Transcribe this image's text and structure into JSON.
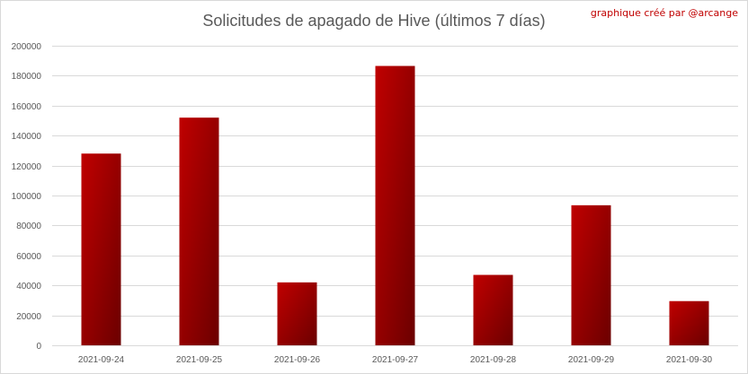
{
  "chart_data": {
    "type": "bar",
    "title": "Solicitudes de apagado de Hive (últimos 7 días)",
    "annotation": "graphique créé par @arcange",
    "categories": [
      "2021-09-24",
      "2021-09-25",
      "2021-09-26",
      "2021-09-27",
      "2021-09-28",
      "2021-09-29",
      "2021-09-30"
    ],
    "values": [
      128000,
      152000,
      42000,
      186500,
      47000,
      93500,
      29500
    ],
    "ylim": [
      0,
      200000
    ],
    "yticks": [
      0,
      20000,
      40000,
      60000,
      80000,
      100000,
      120000,
      140000,
      160000,
      180000,
      200000
    ],
    "xlabel": "",
    "ylabel": "",
    "grid": true,
    "legend": "none",
    "bar_color": "#c00000",
    "bar_color_dark": "#6b0000"
  }
}
